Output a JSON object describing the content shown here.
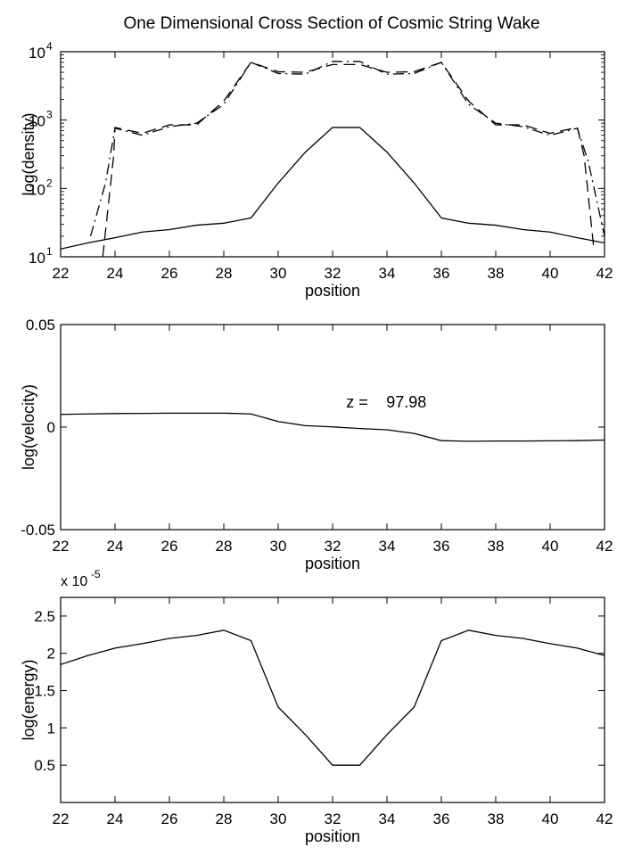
{
  "chart_data": [
    {
      "type": "line",
      "title": "One Dimensional Cross Section of Cosmic String Wake",
      "xlabel": "position",
      "ylabel": "log(density)",
      "yscale": "log",
      "xlim": [
        22,
        42
      ],
      "ylim": [
        10,
        10000
      ],
      "x_ticks": [
        22,
        24,
        26,
        28,
        30,
        32,
        34,
        36,
        38,
        40,
        42
      ],
      "y_ticks": [
        {
          "value": 10,
          "base": "10",
          "exp": "1"
        },
        {
          "value": 100,
          "base": "10",
          "exp": "2"
        },
        {
          "value": 1000,
          "base": "10",
          "exp": "3"
        },
        {
          "value": 10000,
          "base": "10",
          "exp": "4"
        }
      ],
      "series": [
        {
          "style": "solid",
          "x": [
            22,
            23,
            24,
            25,
            26,
            27,
            28,
            29,
            30,
            31,
            32,
            33,
            34,
            35,
            36,
            37,
            38,
            39,
            40,
            41,
            42
          ],
          "y": [
            13,
            16,
            19,
            23,
            25,
            29,
            31,
            37,
            120,
            340,
            780,
            780,
            340,
            120,
            37,
            31,
            29,
            25,
            23,
            19,
            16
          ]
        },
        {
          "style": "dashed",
          "x": [
            23.55,
            23.95,
            24,
            25,
            26,
            27,
            28,
            29,
            30,
            31,
            32,
            33,
            34,
            35,
            36,
            37,
            38,
            39,
            40,
            41,
            41.25,
            41.6
          ],
          "y": [
            10,
            300,
            780,
            640,
            850,
            850,
            1900,
            7000,
            5100,
            5000,
            6500,
            6500,
            5000,
            5100,
            7000,
            1900,
            850,
            850,
            640,
            780,
            300,
            14
          ]
        },
        {
          "style": "dashdot",
          "x": [
            23.1,
            23.65,
            24,
            25,
            26,
            27,
            28,
            29,
            30,
            31,
            32,
            33,
            34,
            35,
            36,
            37,
            38,
            39,
            40,
            41,
            41.4,
            42
          ],
          "y": [
            20,
            120,
            760,
            600,
            800,
            900,
            1700,
            7000,
            4800,
            4700,
            7200,
            7200,
            4700,
            4800,
            7000,
            1700,
            900,
            800,
            600,
            760,
            250,
            20
          ]
        }
      ]
    },
    {
      "type": "line",
      "xlabel": "position",
      "ylabel": "log(velocity)",
      "xlim": [
        22,
        42
      ],
      "ylim": [
        -0.05,
        0.05
      ],
      "x_ticks": [
        22,
        24,
        26,
        28,
        30,
        32,
        34,
        36,
        38,
        40,
        42
      ],
      "y_ticks": [
        {
          "value": -0.05,
          "label": "-0.05"
        },
        {
          "value": 0,
          "label": "0"
        },
        {
          "value": 0.05,
          "label": "0.05"
        }
      ],
      "annotation": {
        "label": "z =",
        "value": "97.98",
        "x": 32.5,
        "y": 0.0095
      },
      "series": [
        {
          "style": "solid",
          "x": [
            22,
            23,
            24,
            25,
            26,
            27,
            28,
            29,
            30,
            31,
            32,
            33,
            34,
            35,
            36,
            37,
            38,
            39,
            40,
            41,
            42
          ],
          "y": [
            0.0062,
            0.0064,
            0.0066,
            0.0067,
            0.0068,
            0.0068,
            0.0068,
            0.0064,
            0.0027,
            0.0007,
            0.0001,
            -0.0007,
            -0.0013,
            -0.0031,
            -0.0066,
            -0.0069,
            -0.0068,
            -0.0068,
            -0.0067,
            -0.0066,
            -0.0063
          ]
        }
      ]
    },
    {
      "type": "line",
      "xlabel": "position",
      "ylabel": "log(energy)",
      "xlim": [
        22,
        42
      ],
      "ylim": [
        0,
        2.75
      ],
      "scale_note": {
        "prefix": "x 10",
        "exp": "-5"
      },
      "x_ticks": [
        22,
        24,
        26,
        28,
        30,
        32,
        34,
        36,
        38,
        40,
        42
      ],
      "y_ticks": [
        {
          "value": 0.5,
          "label": "0.5"
        },
        {
          "value": 1,
          "label": "1"
        },
        {
          "value": 1.5,
          "label": "1.5"
        },
        {
          "value": 2,
          "label": "2"
        },
        {
          "value": 2.5,
          "label": "2.5"
        }
      ],
      "series": [
        {
          "style": "solid",
          "x": [
            22,
            23,
            24,
            25,
            26,
            27,
            28,
            29,
            30,
            31,
            32,
            33,
            34,
            35,
            36,
            37,
            38,
            39,
            40,
            41,
            42
          ],
          "y": [
            1.85,
            1.97,
            2.07,
            2.13,
            2.2,
            2.24,
            2.31,
            2.17,
            1.28,
            0.91,
            0.5,
            0.5,
            0.91,
            1.28,
            2.17,
            2.31,
            2.24,
            2.2,
            2.13,
            2.07,
            1.97
          ]
        }
      ]
    }
  ]
}
